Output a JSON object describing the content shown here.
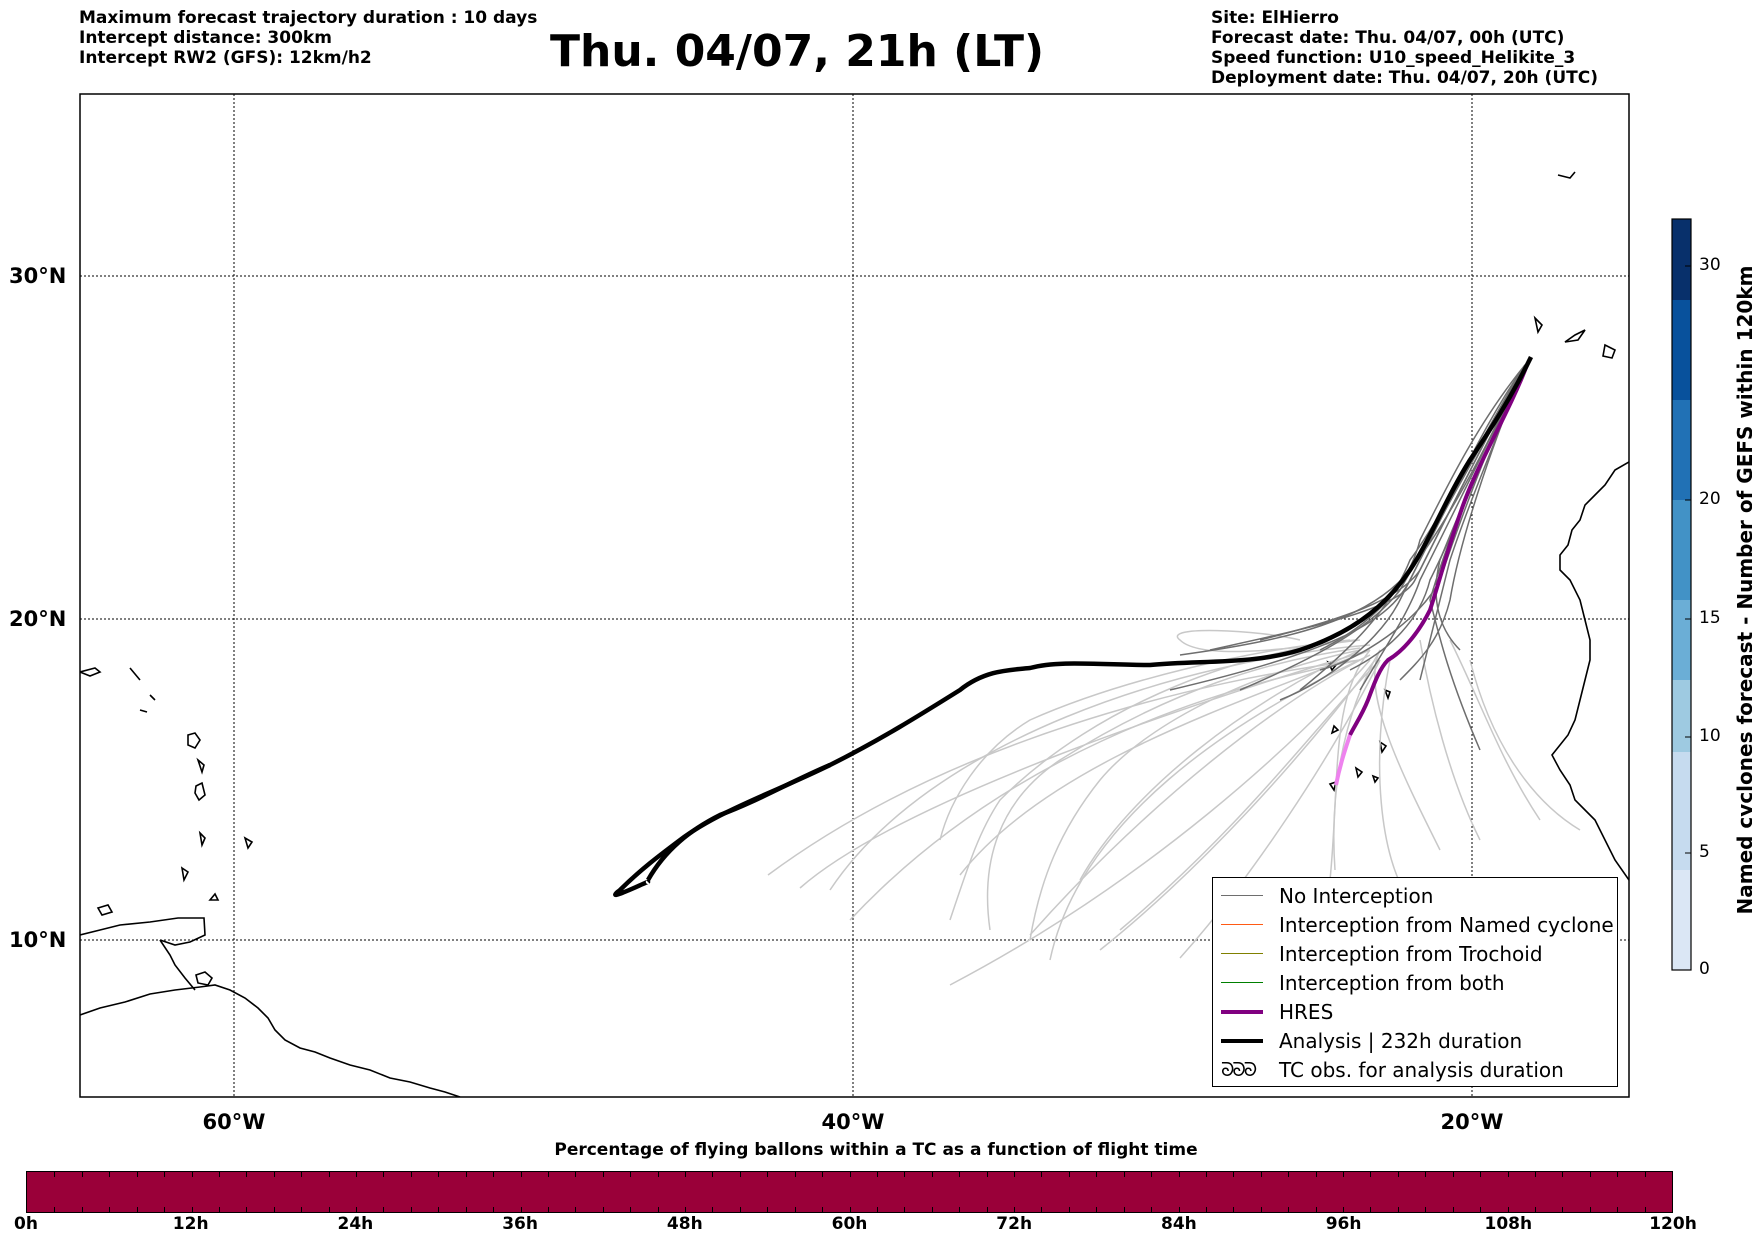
{
  "header_left": [
    "Maximum forecast trajectory duration : 10 days",
    "Intercept distance: 300km",
    "Intercept RW2 (GFS):  12km/h2"
  ],
  "title": "Thu. 04/07, 21h (LT)",
  "header_right": [
    "Site: ElHierro",
    "Forecast date: Thu. 04/07, 00h (UTC)",
    "Speed function: U10_speed_Helikite_3",
    "Deployment date: Thu. 04/07, 20h (UTC)"
  ],
  "map": {
    "lat_labels": [
      "30°N",
      "20°N",
      "10°N"
    ],
    "lon_labels": [
      "60°W",
      "40°W",
      "20°W"
    ],
    "colors": {
      "no_interception": "#6e6e6e",
      "ensemble_light": "#c8c8c8",
      "named_cyclone": "#ff5a14",
      "trochoid": "#808000",
      "both": "#008000",
      "hres": "#800080",
      "hres_early": "#ee82ee",
      "analysis": "#000000",
      "coast": "#000000"
    }
  },
  "legend": {
    "items": [
      {
        "label": "No Interception",
        "color": "#6e6e6e",
        "width": 1.5
      },
      {
        "label": "Interception from Named cyclone",
        "color": "#ff5a14",
        "width": 1.5
      },
      {
        "label": "Interception from Trochoid",
        "color": "#808000",
        "width": 1.5
      },
      {
        "label": "Interception from both",
        "color": "#008000",
        "width": 1.5
      },
      {
        "label": "HRES",
        "color": "#800080",
        "width": 4
      },
      {
        "label": "Analysis | 232h duration",
        "color": "#000000",
        "width": 4
      }
    ],
    "tc_obs_icon": "ᘐᘐᘐ",
    "tc_obs_label": "TC obs. for analysis duration"
  },
  "colorbar": {
    "label": "Named cyclones forecast - Number of GEFS within 120km",
    "ticks": [
      "30",
      "20",
      "15",
      "10",
      "5",
      "0"
    ],
    "colors": [
      "#dbe7f5",
      "#c6dbef",
      "#9ecae1",
      "#6baed6",
      "#4292c6",
      "#2171b5",
      "#08519c",
      "#08306b"
    ]
  },
  "bottom_bar": {
    "title": "Percentage of flying ballons within a TC as a function of flight time",
    "color": "#9a0039",
    "ticks": [
      "0h",
      "12h",
      "24h",
      "36h",
      "48h",
      "60h",
      "72h",
      "84h",
      "96h",
      "108h",
      "120h"
    ]
  }
}
